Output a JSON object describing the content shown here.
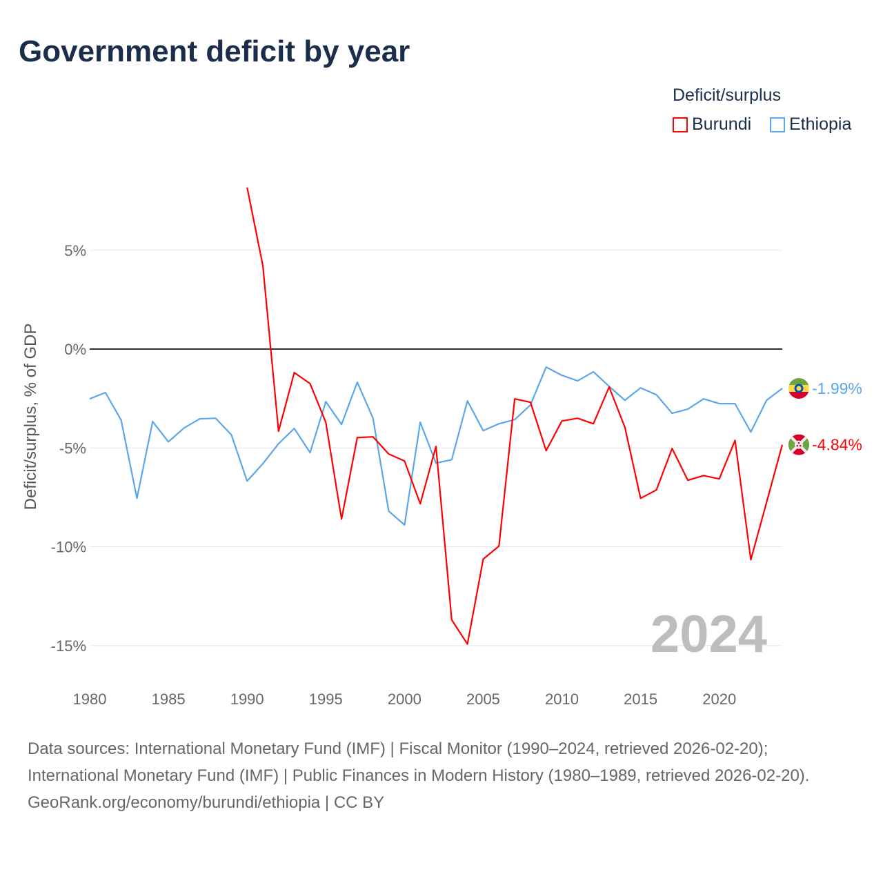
{
  "title": "Government deficit by year",
  "legend": {
    "title": "Deficit/surplus",
    "items": [
      {
        "name": "Burundi",
        "color": "#ff0000"
      },
      {
        "name": "Ethiopia",
        "color": "#5aa6ea"
      }
    ]
  },
  "year_label": "2024",
  "footer": {
    "sources": "Data sources: International Monetary Fund (IMF) | Fiscal Monitor (1990–2024, retrieved 2026-02-20); International Monetary Fund (IMF) | Public Finances in Modern History (1980–1989, retrieved 2026-02-20).",
    "credit": "GeoRank.org/economy/burundi/ethiopia | CC BY"
  },
  "chart_data": {
    "type": "line",
    "title": "Government deficit by year",
    "xlabel": "",
    "ylabel": "Deficit/surplus, % of GDP",
    "xlim": [
      1980,
      2024
    ],
    "ylim": [
      -15,
      8.2
    ],
    "x_ticks": [
      1980,
      1985,
      1990,
      1995,
      2000,
      2005,
      2010,
      2015,
      2020
    ],
    "y_ticks": [
      {
        "v": 5,
        "label": "5%"
      },
      {
        "v": 0,
        "label": "0%"
      },
      {
        "v": -5,
        "label": "-5%"
      },
      {
        "v": -10,
        "label": "-10%"
      },
      {
        "v": -15,
        "label": "-15%"
      }
    ],
    "legend_position": "top-right",
    "series": [
      {
        "name": "Burundi",
        "color": "#ff0000",
        "end_label": "-4.84%",
        "flag": "burundi-flag",
        "start_year": 1990,
        "values": [
          8.18,
          4.23,
          -4.16,
          -1.19,
          -1.75,
          -3.71,
          -8.6,
          -4.48,
          -4.44,
          -5.31,
          -5.66,
          -7.83,
          -4.93,
          -13.7,
          -14.93,
          -10.63,
          -9.97,
          -2.52,
          -2.69,
          -5.14,
          -3.64,
          -3.5,
          -3.78,
          -1.92,
          -3.95,
          -7.55,
          -7.13,
          -5.03,
          -6.64,
          -6.4,
          -6.57,
          -4.62,
          -10.66,
          -7.76,
          -4.84
        ]
      },
      {
        "name": "Ethiopia",
        "color": "#5aa6ea",
        "end_label": "-1.99%",
        "flag": "ethiopia-flag",
        "start_year": 1980,
        "values": [
          -2.52,
          -2.2,
          -3.6,
          -7.55,
          -3.67,
          -4.69,
          -3.99,
          -3.53,
          -3.5,
          -4.34,
          -6.68,
          -5.8,
          -4.79,
          -4.02,
          -5.24,
          -2.66,
          -3.81,
          -1.68,
          -3.5,
          -8.2,
          -8.9,
          -3.7,
          -5.77,
          -5.6,
          -2.62,
          -4.13,
          -3.78,
          -3.57,
          -2.83,
          -0.91,
          -1.33,
          -1.61,
          -1.15,
          -1.89,
          -2.59,
          -1.96,
          -2.31,
          -3.25,
          -3.04,
          -2.52,
          -2.76,
          -2.76,
          -4.2,
          -2.59,
          -1.99
        ]
      }
    ]
  }
}
